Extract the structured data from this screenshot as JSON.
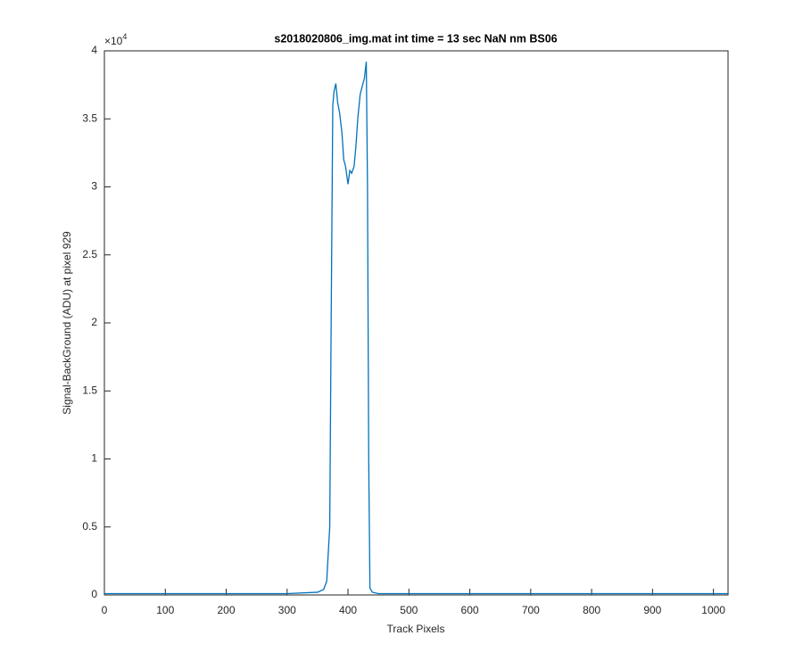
{
  "chart_data": {
    "type": "line",
    "title": "s2018020806_img.mat int time = 13 sec  NaN nm BS06",
    "x_label": "Track Pixels",
    "y_label": "Signal-BackGround (ADU) at pixel 929",
    "y_multiplier": "×10",
    "y_multiplier_exp": "4",
    "x": [
      0,
      100,
      200,
      300,
      350,
      360,
      365,
      370,
      372,
      375,
      377,
      380,
      383,
      386,
      390,
      393,
      396,
      400,
      403,
      406,
      410,
      413,
      416,
      420,
      424,
      427,
      430,
      432,
      434,
      436,
      440,
      450,
      500,
      600,
      700,
      800,
      900,
      1000,
      1024
    ],
    "series": [
      {
        "name": "signal",
        "color": "#0072bd",
        "values": [
          0.01,
          0.01,
          0.01,
          0.01,
          0.02,
          0.04,
          0.1,
          0.5,
          1.8,
          3.6,
          3.7,
          3.76,
          3.62,
          3.55,
          3.4,
          3.2,
          3.15,
          3.02,
          3.12,
          3.1,
          3.15,
          3.3,
          3.5,
          3.68,
          3.75,
          3.8,
          3.92,
          3.0,
          1.0,
          0.05,
          0.02,
          0.01,
          0.01,
          0.01,
          0.01,
          0.01,
          0.01,
          0.01,
          0.01
        ]
      }
    ],
    "xlim": [
      0,
      1024
    ],
    "xticks": [
      0,
      100,
      200,
      300,
      400,
      500,
      600,
      700,
      800,
      900,
      1000
    ],
    "ylim": [
      0,
      4
    ],
    "yticks": [
      0,
      0.5,
      1,
      1.5,
      2,
      2.5,
      3,
      3.5,
      4
    ]
  }
}
